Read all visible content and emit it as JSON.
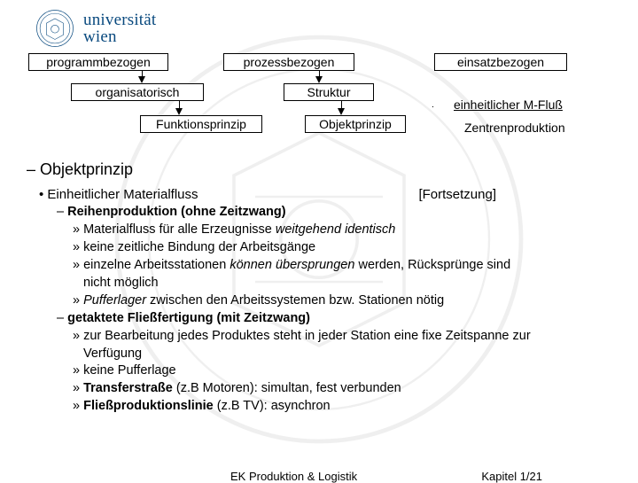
{
  "logo": {
    "line1": "universität",
    "line2": "wien"
  },
  "diagram": {
    "row1": {
      "a": "programmbezogen",
      "b": "prozessbezogen",
      "c": "einsatzbezogen"
    },
    "row2": {
      "a": "organisatorisch",
      "b": "Struktur"
    },
    "row3": {
      "a": "Funktionsprinzip",
      "b": "Objektprinzip"
    },
    "side": {
      "a": "einheitlicher M-Fluß",
      "b": "Zentrenproduktion"
    }
  },
  "heading": "– Objektprinzip",
  "subheading": "• Einheitlicher Materialfluss",
  "continuation": "[Fortsetzung]",
  "sections": [
    {
      "title": "Reihenproduktion (ohne Zeitzwang)",
      "items": [
        {
          "text": "Materialfluss für alle Erzeugnisse ",
          "i": "weitgehend identisch"
        },
        {
          "text": "keine zeitliche Bindung der Arbeitsgänge"
        },
        {
          "text": "einzelne Arbeitsstationen ",
          "i": "können übersprungen",
          "after": " werden, Rücksprünge sind",
          "cont": "nicht möglich"
        },
        {
          "text": "",
          "i": "Pufferlager",
          "after": " zwischen den Arbeitssystemen bzw. Stationen nötig"
        }
      ]
    },
    {
      "title": "getaktete Fließfertigung (mit Zeitzwang)",
      "items": [
        {
          "text": "zur Bearbeitung jedes Produktes steht in jeder Station eine fixe Zeitspanne zur",
          "cont": "Verfügung"
        },
        {
          "text": "keine Pufferlage"
        },
        {
          "b": "Transferstraße",
          "after": " (z.B Motoren): simultan, fest verbunden"
        },
        {
          "b": "Fließproduktionslinie",
          "after": " (z.B TV): asynchron"
        }
      ]
    }
  ],
  "footer": {
    "left": "EK Produktion & Logistik",
    "right": "Kapitel 1/21"
  }
}
